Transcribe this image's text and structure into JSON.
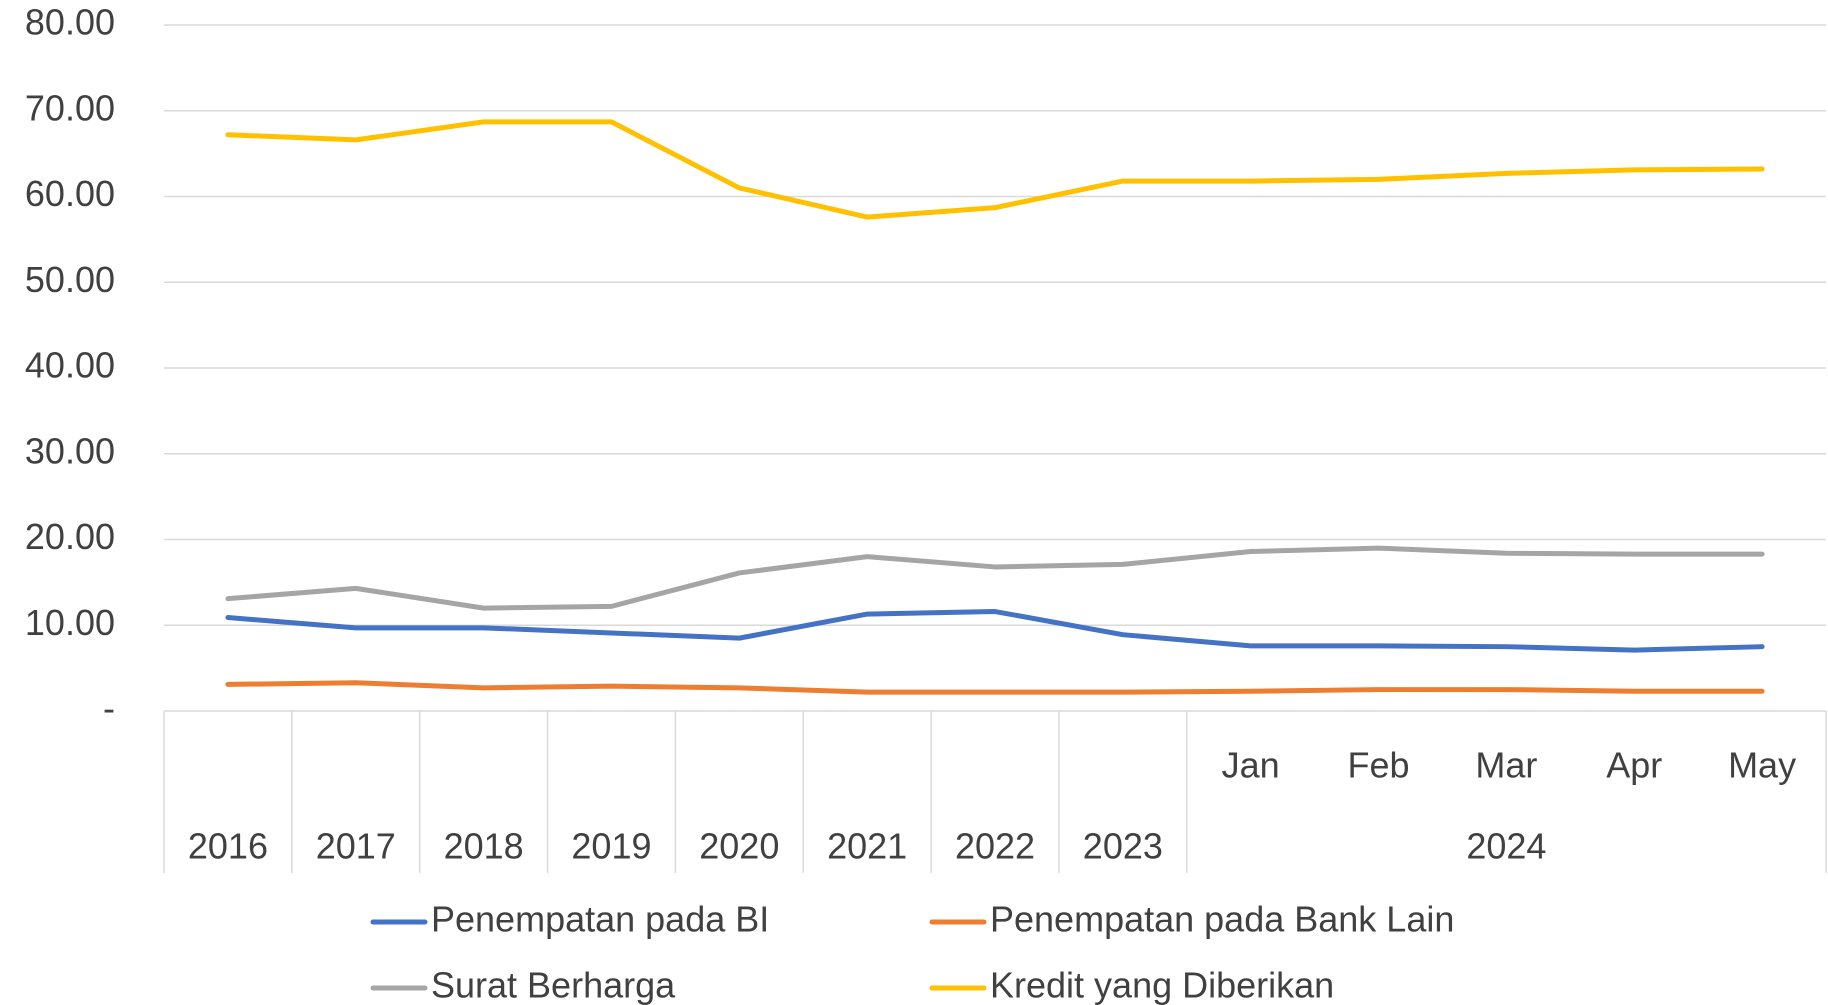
{
  "chart_data": {
    "type": "line",
    "categories": [
      "2016",
      "2017",
      "2018",
      "2019",
      "2020",
      "2021",
      "2022",
      "2023",
      "Jan",
      "Feb",
      "Mar",
      "Apr",
      "May"
    ],
    "category_groups": [
      {
        "label": "2024",
        "span": [
          8,
          12
        ]
      }
    ],
    "series": [
      {
        "name": "Penempatan pada BI",
        "color": "#4472c4",
        "values": [
          10.9,
          9.7,
          9.7,
          9.1,
          8.5,
          11.3,
          11.6,
          8.9,
          7.6,
          7.6,
          7.5,
          7.1,
          7.5
        ]
      },
      {
        "name": "Penempatan pada Bank Lain",
        "color": "#ed7d31",
        "values": [
          3.1,
          3.3,
          2.7,
          2.9,
          2.7,
          2.2,
          2.2,
          2.2,
          2.3,
          2.5,
          2.5,
          2.3,
          2.3
        ]
      },
      {
        "name": "Surat Berharga",
        "color": "#a5a5a5",
        "values": [
          13.1,
          14.3,
          12.0,
          12.2,
          16.1,
          18.0,
          16.8,
          17.1,
          18.6,
          19.0,
          18.4,
          18.3,
          18.3
        ]
      },
      {
        "name": "Kredit yang Diberikan",
        "color": "#ffc000",
        "values": [
          67.2,
          66.6,
          68.7,
          68.7,
          61.0,
          57.6,
          58.7,
          61.8,
          61.8,
          62.0,
          62.7,
          63.1,
          63.2
        ]
      }
    ],
    "ylim": [
      0,
      80
    ],
    "yticks": [
      {
        "value": 0,
        "label": "-"
      },
      {
        "value": 10,
        "label": "10.00"
      },
      {
        "value": 20,
        "label": "20.00"
      },
      {
        "value": 30,
        "label": "30.00"
      },
      {
        "value": 40,
        "label": "40.00"
      },
      {
        "value": 50,
        "label": "50.00"
      },
      {
        "value": 60,
        "label": "60.00"
      },
      {
        "value": 70,
        "label": "70.00"
      },
      {
        "value": 80,
        "label": "80.00"
      }
    ],
    "grid": true,
    "legend": "bottom"
  }
}
